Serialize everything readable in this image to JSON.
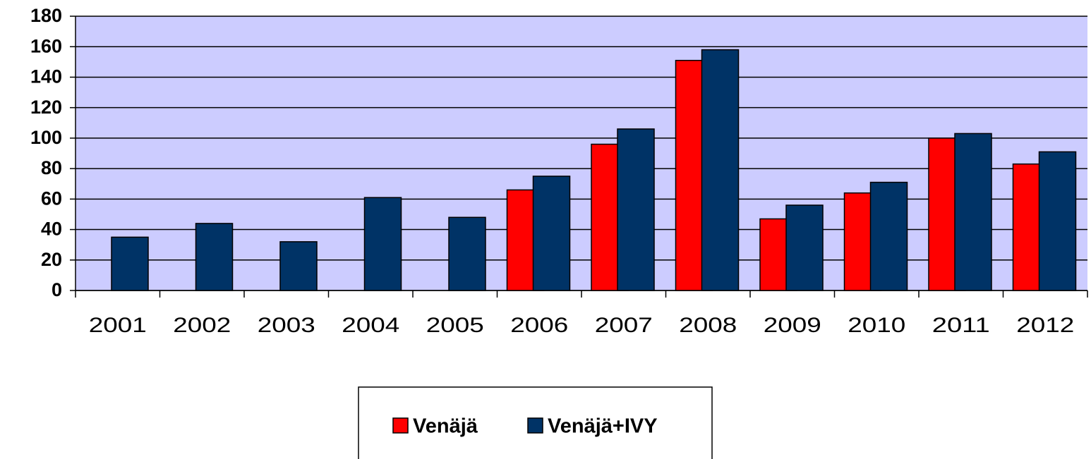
{
  "chart_data": {
    "type": "bar",
    "categories": [
      "2001",
      "2002",
      "2003",
      "2004",
      "2005",
      "2006",
      "2007",
      "2008",
      "2009",
      "2010",
      "2011",
      "2012"
    ],
    "series": [
      {
        "name": "Venäjä",
        "color": "#ff0000",
        "values": [
          null,
          null,
          null,
          null,
          null,
          66,
          96,
          151,
          47,
          64,
          100,
          83
        ]
      },
      {
        "name": "Venäjä+IVY",
        "color": "#003366",
        "values": [
          35,
          44,
          32,
          61,
          48,
          75,
          106,
          158,
          56,
          71,
          103,
          91
        ]
      }
    ],
    "ylim": [
      0,
      180
    ],
    "yticks": [
      0,
      20,
      40,
      60,
      80,
      100,
      120,
      140,
      160,
      180
    ],
    "grid": true,
    "background": "#ccccff",
    "legend": "bottom"
  }
}
